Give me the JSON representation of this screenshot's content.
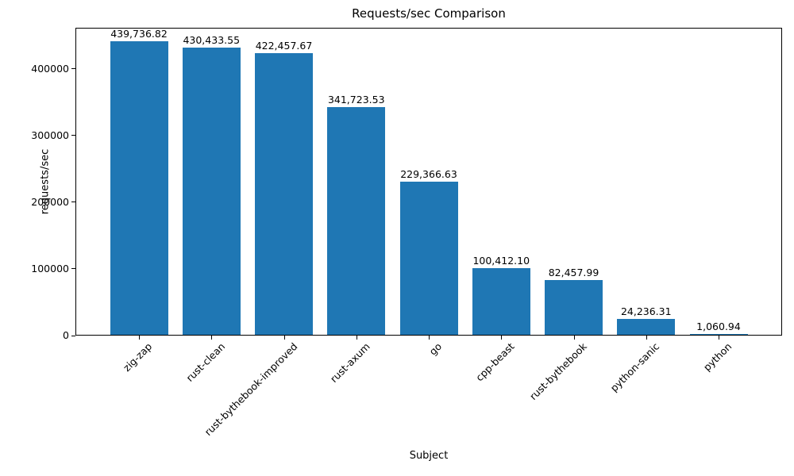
{
  "chart_data": {
    "type": "bar",
    "title": "Requests/sec Comparison",
    "xlabel": "Subject",
    "ylabel": "requests/sec",
    "categories": [
      "zig-zap",
      "rust-clean",
      "rust-bythebook-improved",
      "rust-axum",
      "go",
      "cpp-beast",
      "rust-bythebook",
      "python-sanic",
      "python"
    ],
    "values": [
      439736.82,
      430433.55,
      422457.67,
      341723.53,
      229366.63,
      100412.1,
      82457.99,
      24236.31,
      1060.94
    ],
    "value_labels": [
      "439,736.82",
      "430,433.55",
      "422,457.67",
      "341,723.53",
      "229,366.63",
      "100,412.10",
      "82,457.99",
      "24,236.31",
      "1,060.94"
    ],
    "yticks": [
      0,
      100000,
      200000,
      300000,
      400000
    ],
    "ytick_labels": [
      "0",
      "100000",
      "200000",
      "300000",
      "400000"
    ],
    "ylim": [
      0,
      461724
    ],
    "grid": false,
    "legend": null,
    "bar_color": "#1f77b4",
    "text_color": "#000000",
    "background_color": "#ffffff"
  }
}
